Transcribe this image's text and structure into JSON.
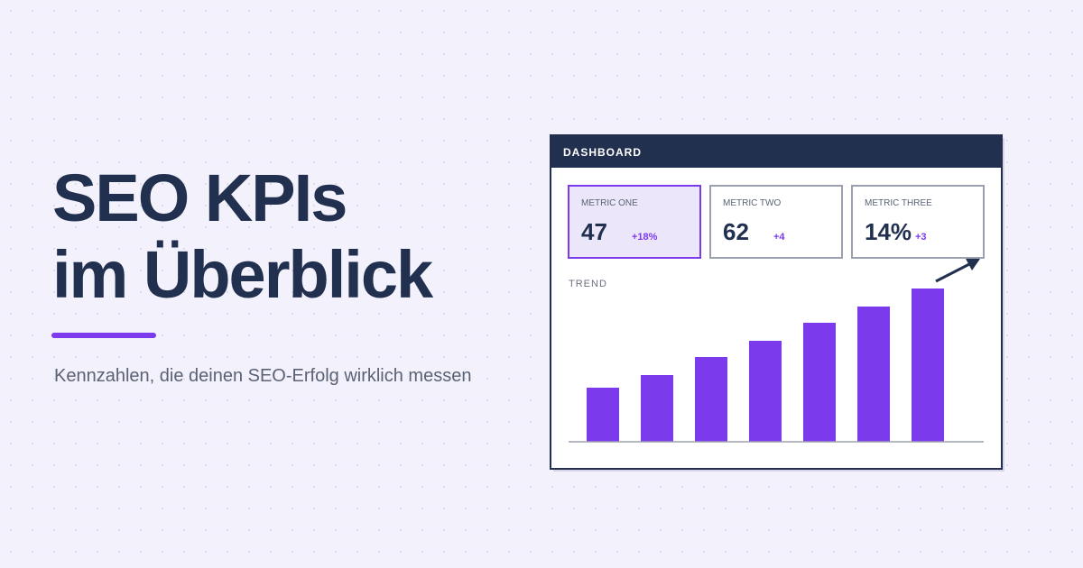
{
  "headline": {
    "line1": "SEO KPIs",
    "line2": "im Überblick"
  },
  "subtitle": "Kennzahlen, die deinen SEO-Erfolg wirklich messen",
  "dashboard": {
    "title": "DASHBOARD",
    "metrics": [
      {
        "label": "METRIC ONE",
        "value": "47",
        "change": "+18%"
      },
      {
        "label": "METRIC TWO",
        "value": "62",
        "change": "+4"
      },
      {
        "label": "METRIC THREE",
        "value": "14%",
        "change": "+3"
      }
    ],
    "chart_data": {
      "type": "bar",
      "title": "TREND",
      "values": [
        60,
        74,
        94,
        112,
        132,
        150,
        170
      ],
      "ylim": [
        0,
        170
      ],
      "color": "#7c3aed"
    }
  }
}
